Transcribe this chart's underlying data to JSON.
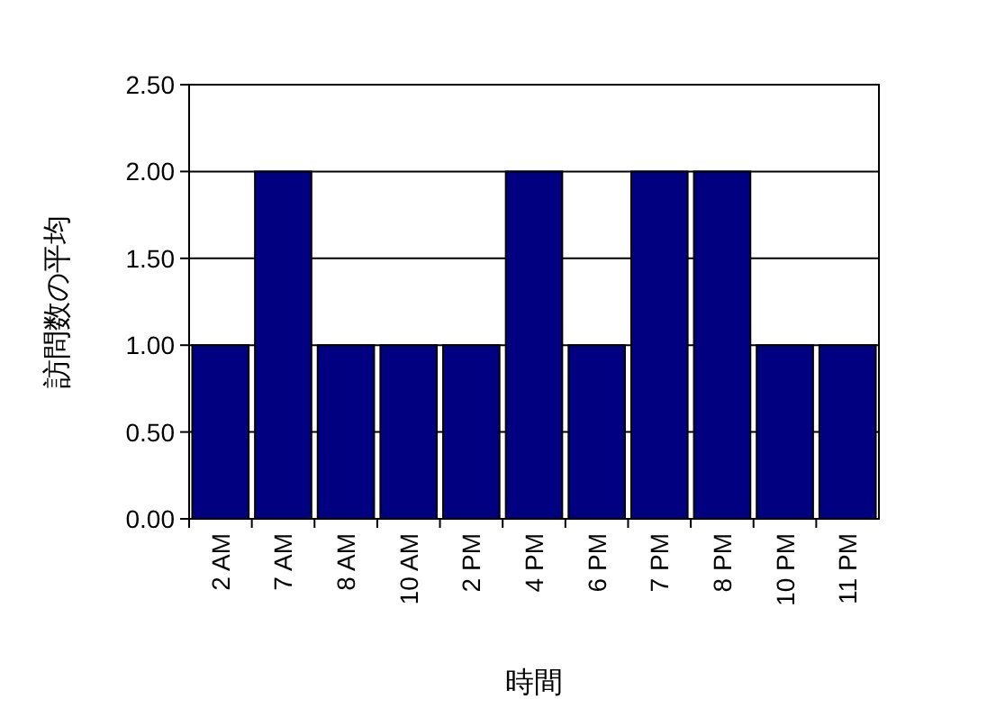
{
  "chart_data": {
    "type": "bar",
    "xlabel": "時間",
    "ylabel": "訪問数の平均",
    "categories": [
      "2 AM",
      "7 AM",
      "8 AM",
      "10 AM",
      "2 PM",
      "4 PM",
      "6 PM",
      "7 PM",
      "8 PM",
      "10 PM",
      "11 PM"
    ],
    "values": [
      1,
      2,
      1,
      1,
      1,
      2,
      1,
      2,
      2,
      1,
      1
    ],
    "color": "#000080",
    "ylim": [
      0,
      2.5
    ],
    "yticks": [
      {
        "value": 0,
        "label": "0.00"
      },
      {
        "value": 0.5,
        "label": "0.50"
      },
      {
        "value": 1,
        "label": "1.00"
      },
      {
        "value": 1.5,
        "label": "1.50"
      },
      {
        "value": 2,
        "label": "2.00"
      },
      {
        "value": 2.5,
        "label": "2.50"
      }
    ],
    "grid": "y"
  }
}
